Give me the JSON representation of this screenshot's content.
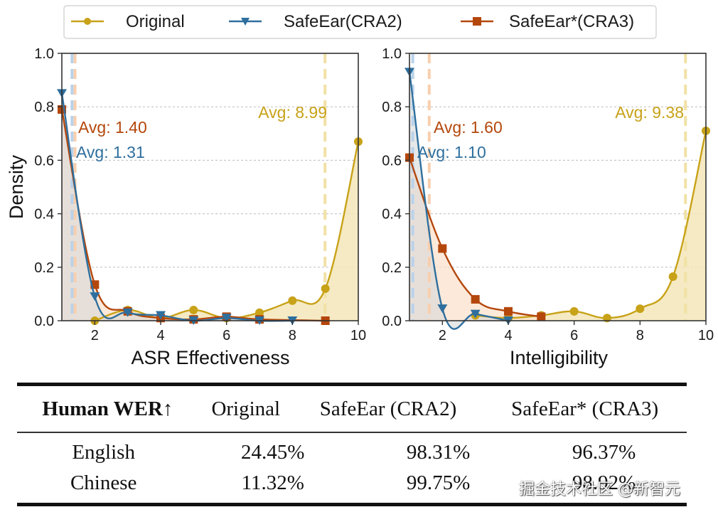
{
  "colors": {
    "original": "#C8A218",
    "cra2": "#2E6F9E",
    "cra3": "#B4470C",
    "original_fill": "#F3E6B8",
    "cra2_fill": "#D7D9D9",
    "cra3_fill": "#FBE1CC",
    "original_avg_line": "#F1E1A6",
    "cra2_avg_line": "#B9D2EA",
    "cra3_avg_line": "#F8CFAE",
    "grid": "#bdbdbd"
  },
  "legend": {
    "items": [
      {
        "label": "Original",
        "marker": "circle",
        "series": "original"
      },
      {
        "label": "SafeEar(CRA2)",
        "marker": "triangle-down",
        "series": "cra2"
      },
      {
        "label": "SafeEar*(CRA3)",
        "marker": "square",
        "series": "cra3"
      }
    ]
  },
  "chart_data": [
    {
      "type": "line",
      "title": "",
      "xlabel": "ASR Effectiveness",
      "ylabel": "Density",
      "xlim": [
        1,
        10
      ],
      "ylim": [
        0,
        1.0
      ],
      "xticks": [
        "2",
        "4",
        "6",
        "8",
        "10"
      ],
      "yticks": [
        "0.0",
        "0.2",
        "0.4",
        "0.6",
        "0.8",
        "1.0"
      ],
      "grid": "horizontal-dashed",
      "series": [
        {
          "name": "Original",
          "key": "original",
          "x": [
            2,
            3,
            4,
            5,
            6,
            7,
            8,
            9,
            10
          ],
          "values": [
            0.0,
            0.04,
            0.01,
            0.04,
            0.01,
            0.03,
            0.075,
            0.12,
            0.67
          ],
          "avg": 8.99,
          "avg_label": "Avg: 8.99"
        },
        {
          "name": "SafeEar(CRA2)",
          "key": "cra2",
          "x": [
            1,
            2,
            3,
            4,
            5,
            6,
            7,
            8
          ],
          "values": [
            0.85,
            0.09,
            0.03,
            0.02,
            0.0,
            0.01,
            0.0,
            0.0
          ],
          "avg": 1.31,
          "avg_label": "Avg: 1.31"
        },
        {
          "name": "SafeEar*(CRA3)",
          "key": "cra3",
          "x": [
            1,
            2,
            3,
            4,
            5,
            6,
            7,
            9
          ],
          "values": [
            0.79,
            0.135,
            0.035,
            0.01,
            0.005,
            0.015,
            0.005,
            0.0
          ],
          "avg": 1.4,
          "avg_label": "Avg: 1.40"
        }
      ]
    },
    {
      "type": "line",
      "title": "",
      "xlabel": "Intelligibility",
      "ylabel": "",
      "xlim": [
        1,
        10
      ],
      "ylim": [
        0,
        1.0
      ],
      "xticks": [
        "2",
        "4",
        "6",
        "8",
        "10"
      ],
      "yticks": [
        "0.0",
        "0.2",
        "0.4",
        "0.6",
        "0.8",
        "1.0"
      ],
      "grid": "horizontal-dashed",
      "series": [
        {
          "name": "Original",
          "key": "original",
          "x": [
            3,
            4,
            5,
            6,
            7,
            8,
            9,
            10
          ],
          "values": [
            0.02,
            0.01,
            0.02,
            0.035,
            0.01,
            0.045,
            0.165,
            0.71
          ],
          "avg": 9.38,
          "avg_label": "Avg: 9.38"
        },
        {
          "name": "SafeEar(CRA2)",
          "key": "cra2",
          "x": [
            1,
            2,
            3,
            4
          ],
          "values": [
            0.93,
            0.045,
            0.025,
            0.0
          ],
          "avg": 1.1,
          "avg_label": "Avg: 1.10"
        },
        {
          "name": "SafeEar*(CRA3)",
          "key": "cra3",
          "x": [
            1,
            2,
            3,
            4,
            5
          ],
          "values": [
            0.61,
            0.27,
            0.08,
            0.035,
            0.015
          ],
          "avg": 1.6,
          "avg_label": "Avg: 1.60"
        }
      ]
    }
  ],
  "table": {
    "headers": [
      "Human WER↑",
      "Original",
      "SafeEar (CRA2)",
      "SafeEar* (CRA3)"
    ],
    "rows": [
      [
        "English",
        "24.45%",
        "98.31%",
        "96.37%"
      ],
      [
        "Chinese",
        "11.32%",
        "99.75%",
        "98.92%"
      ]
    ]
  },
  "watermark": "掘金技术社区 @新智元"
}
